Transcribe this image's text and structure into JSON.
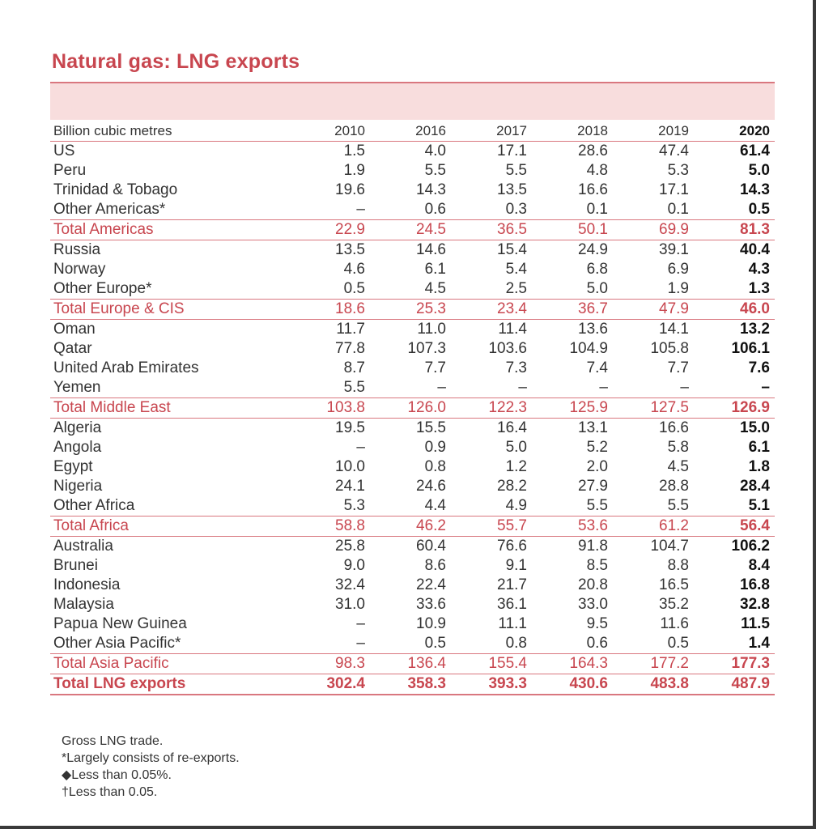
{
  "title": "Natural gas: LNG exports",
  "colors": {
    "accent": "#c8464f",
    "band": "#f8dddd",
    "rule": "#d9777f"
  },
  "table": {
    "unit_label": "Billion cubic metres",
    "years": [
      "2010",
      "2016",
      "2017",
      "2018",
      "2019",
      "2020"
    ],
    "rows": [
      {
        "type": "row",
        "name": "US",
        "values": [
          "1.5",
          "4.0",
          "17.1",
          "28.6",
          "47.4",
          "61.4"
        ]
      },
      {
        "type": "row",
        "name": "Peru",
        "values": [
          "1.9",
          "5.5",
          "5.5",
          "4.8",
          "5.3",
          "5.0"
        ]
      },
      {
        "type": "row",
        "name": "Trinidad & Tobago",
        "values": [
          "19.6",
          "14.3",
          "13.5",
          "16.6",
          "17.1",
          "14.3"
        ]
      },
      {
        "type": "row",
        "name": "Other Americas*",
        "values": [
          "–",
          "0.6",
          "0.3",
          "0.1",
          "0.1",
          "0.5"
        ]
      },
      {
        "type": "total",
        "name": "Total Americas",
        "values": [
          "22.9",
          "24.5",
          "36.5",
          "50.1",
          "69.9",
          "81.3"
        ]
      },
      {
        "type": "row",
        "name": "Russia",
        "values": [
          "13.5",
          "14.6",
          "15.4",
          "24.9",
          "39.1",
          "40.4"
        ]
      },
      {
        "type": "row",
        "name": "Norway",
        "values": [
          "4.6",
          "6.1",
          "5.4",
          "6.8",
          "6.9",
          "4.3"
        ]
      },
      {
        "type": "row",
        "name": "Other Europe*",
        "values": [
          "0.5",
          "4.5",
          "2.5",
          "5.0",
          "1.9",
          "1.3"
        ]
      },
      {
        "type": "total",
        "name": "Total Europe & CIS",
        "values": [
          "18.6",
          "25.3",
          "23.4",
          "36.7",
          "47.9",
          "46.0"
        ]
      },
      {
        "type": "row",
        "name": "Oman",
        "values": [
          "11.7",
          "11.0",
          "11.4",
          "13.6",
          "14.1",
          "13.2"
        ]
      },
      {
        "type": "row",
        "name": "Qatar",
        "values": [
          "77.8",
          "107.3",
          "103.6",
          "104.9",
          "105.8",
          "106.1"
        ]
      },
      {
        "type": "row",
        "name": "United Arab Emirates",
        "values": [
          "8.7",
          "7.7",
          "7.3",
          "7.4",
          "7.7",
          "7.6"
        ]
      },
      {
        "type": "row",
        "name": "Yemen",
        "values": [
          "5.5",
          "–",
          "–",
          "–",
          "–",
          "–"
        ]
      },
      {
        "type": "total",
        "name": "Total Middle East",
        "values": [
          "103.8",
          "126.0",
          "122.3",
          "125.9",
          "127.5",
          "126.9"
        ]
      },
      {
        "type": "row",
        "name": "Algeria",
        "values": [
          "19.5",
          "15.5",
          "16.4",
          "13.1",
          "16.6",
          "15.0"
        ]
      },
      {
        "type": "row",
        "name": "Angola",
        "values": [
          "–",
          "0.9",
          "5.0",
          "5.2",
          "5.8",
          "6.1"
        ]
      },
      {
        "type": "row",
        "name": "Egypt",
        "values": [
          "10.0",
          "0.8",
          "1.2",
          "2.0",
          "4.5",
          "1.8"
        ]
      },
      {
        "type": "row",
        "name": "Nigeria",
        "values": [
          "24.1",
          "24.6",
          "28.2",
          "27.9",
          "28.8",
          "28.4"
        ]
      },
      {
        "type": "row",
        "name": "Other Africa",
        "values": [
          "5.3",
          "4.4",
          "4.9",
          "5.5",
          "5.5",
          "5.1"
        ]
      },
      {
        "type": "total",
        "name": "Total Africa",
        "values": [
          "58.8",
          "46.2",
          "55.7",
          "53.6",
          "61.2",
          "56.4"
        ]
      },
      {
        "type": "row",
        "name": "Australia",
        "values": [
          "25.8",
          "60.4",
          "76.6",
          "91.8",
          "104.7",
          "106.2"
        ]
      },
      {
        "type": "row",
        "name": "Brunei",
        "values": [
          "9.0",
          "8.6",
          "9.1",
          "8.5",
          "8.8",
          "8.4"
        ]
      },
      {
        "type": "row",
        "name": "Indonesia",
        "values": [
          "32.4",
          "22.4",
          "21.7",
          "20.8",
          "16.5",
          "16.8"
        ]
      },
      {
        "type": "row",
        "name": "Malaysia",
        "values": [
          "31.0",
          "33.6",
          "36.1",
          "33.0",
          "35.2",
          "32.8"
        ]
      },
      {
        "type": "row",
        "name": "Papua New Guinea",
        "values": [
          "–",
          "10.9",
          "11.1",
          "9.5",
          "11.6",
          "11.5"
        ]
      },
      {
        "type": "row",
        "name": "Other Asia Pacific*",
        "values": [
          "–",
          "0.5",
          "0.8",
          "0.6",
          "0.5",
          "1.4"
        ]
      },
      {
        "type": "total",
        "name": "Total Asia Pacific",
        "values": [
          "98.3",
          "136.4",
          "155.4",
          "164.3",
          "177.2",
          "177.3"
        ]
      },
      {
        "type": "grand",
        "name": "Total LNG exports",
        "values": [
          "302.4",
          "358.3",
          "393.3",
          "430.6",
          "483.8",
          "487.9"
        ]
      }
    ]
  },
  "notes": [
    "Gross LNG trade.",
    "*Largely consists of re-exports.",
    "◆Less than 0.05%.",
    "†Less than 0.05."
  ]
}
